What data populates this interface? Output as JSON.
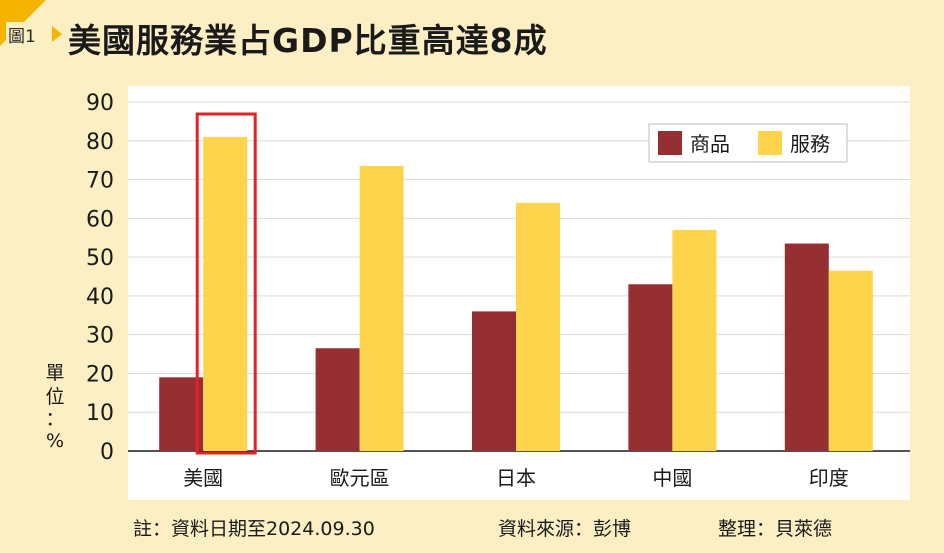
{
  "figure_tag": "圖1",
  "title": "美國服務業占GDP比重高達8成",
  "unit_label": [
    "單",
    "位",
    "：",
    "%"
  ],
  "footer": {
    "note": "註：資料日期至2024.09.30",
    "source": "資料來源：彭博",
    "editor": "整理：貝萊德"
  },
  "colors": {
    "goods": "#952f32",
    "services": "#fdd44c",
    "highlight": "#e32228",
    "plot_bg": "#ffffff",
    "grid": "#d9d9d9"
  },
  "chart_data": {
    "type": "bar",
    "title": "美國服務業占GDP比重高達8成",
    "ylabel": "單位：%",
    "ylim": [
      0,
      90
    ],
    "yticks": [
      "0",
      "10",
      "20",
      "30",
      "40",
      "50",
      "60",
      "70",
      "80",
      "90"
    ],
    "categories": [
      "美國",
      "歐元區",
      "日本",
      "中國",
      "印度"
    ],
    "series": [
      {
        "name": "商品",
        "values": [
          19,
          26.5,
          36,
          43,
          53.5
        ]
      },
      {
        "name": "服務",
        "values": [
          81,
          73.5,
          64,
          57,
          46.5
        ]
      }
    ],
    "highlight_category": "美國",
    "grid": true,
    "legend": "top-right"
  }
}
